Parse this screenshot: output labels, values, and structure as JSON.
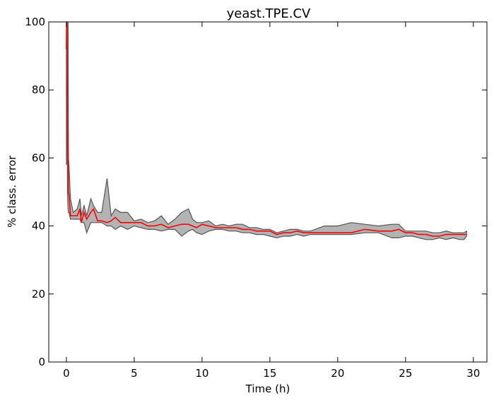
{
  "chart_data": {
    "type": "line",
    "title": "yeast.TPE.CV",
    "xlabel": "Time (h)",
    "ylabel": "% class. error",
    "xlim": [
      -1.3,
      31
    ],
    "ylim": [
      0,
      100
    ],
    "xticks": [
      0,
      5,
      10,
      15,
      20,
      25,
      30
    ],
    "yticks": [
      0,
      20,
      40,
      60,
      80,
      100
    ],
    "grid": false,
    "legend": "none",
    "colors": {
      "mean_line": "#ff0000",
      "band_fill": "#b3b3b3",
      "band_edge": "#555555"
    },
    "series": [
      {
        "x": [
          0,
          0.02,
          0.05,
          0.08,
          0.12,
          0.15,
          0.2,
          0.3,
          0.5,
          0.8,
          1.0,
          1.1,
          1.3,
          1.5,
          1.8,
          2.0,
          2.3,
          2.6,
          3.0,
          3.3,
          3.6,
          4.0,
          4.5,
          5.0,
          5.5,
          6.0,
          6.5,
          7.0,
          7.5,
          8.0,
          8.5,
          9.0,
          9.3,
          9.6,
          10.0,
          10.5,
          11.0,
          11.5,
          12.0,
          12.5,
          13.0,
          13.5,
          14.0,
          14.5,
          15.0,
          15.5,
          16.0,
          16.5,
          17.0,
          17.5,
          18.0,
          19.0,
          20.0,
          21.0,
          22.0,
          23.0,
          24.0,
          24.5,
          25.0,
          25.5,
          26.0,
          26.5,
          27.0,
          27.5,
          28.0,
          28.5,
          29.0,
          29.3,
          29.5
        ],
        "mean": [
          92,
          100,
          99,
          70,
          62,
          50,
          49,
          43,
          43,
          43,
          45,
          41,
          44,
          42,
          44,
          45,
          41.5,
          41.5,
          41,
          41.5,
          42.5,
          41,
          41,
          41,
          41,
          40,
          40,
          40.5,
          39.5,
          40,
          40.5,
          40.5,
          40,
          39.5,
          40.5,
          40,
          39.5,
          39.5,
          39.5,
          39.5,
          39,
          39,
          38.5,
          38.5,
          38.5,
          37.5,
          38,
          38,
          38.5,
          38,
          38,
          38,
          38,
          38,
          39,
          38.5,
          38.5,
          39,
          38,
          38,
          37.5,
          37.5,
          37,
          37,
          37.5,
          37.5,
          37.5,
          37.5,
          37.5
        ],
        "upper": [
          100,
          100,
          100,
          100,
          100,
          60,
          57,
          48,
          44,
          45,
          48,
          43,
          46,
          43,
          48,
          46,
          44,
          44,
          54,
          43,
          45,
          44,
          44,
          41.5,
          42,
          41,
          41.5,
          43,
          40.5,
          42,
          44,
          45,
          42,
          41,
          41,
          41.5,
          40,
          40.5,
          40,
          40.5,
          40.5,
          39.5,
          39.5,
          39,
          39,
          38,
          38.5,
          39,
          39,
          38.5,
          38.5,
          40,
          40,
          41,
          40.5,
          40,
          40.5,
          40.5,
          38.5,
          38.5,
          38.5,
          38.5,
          38,
          38,
          38.5,
          38,
          38,
          38,
          38.5
        ],
        "lower": [
          58,
          92,
          85,
          50,
          45,
          44,
          44,
          42,
          42,
          42,
          42,
          41,
          41,
          38,
          41,
          41,
          41,
          41,
          40,
          40,
          39,
          40,
          39,
          40,
          39.5,
          39,
          39,
          38.5,
          39,
          39,
          37,
          38.5,
          39,
          38,
          37.5,
          38.5,
          39,
          39,
          38.5,
          38.5,
          38,
          38,
          37.5,
          37.5,
          37,
          36.5,
          37,
          37,
          37.5,
          37,
          37.5,
          37.5,
          37.5,
          37.5,
          38,
          38,
          36.5,
          36.5,
          37,
          37,
          36.5,
          36,
          36,
          36.5,
          36,
          36.5,
          36,
          36,
          37
        ]
      }
    ]
  }
}
